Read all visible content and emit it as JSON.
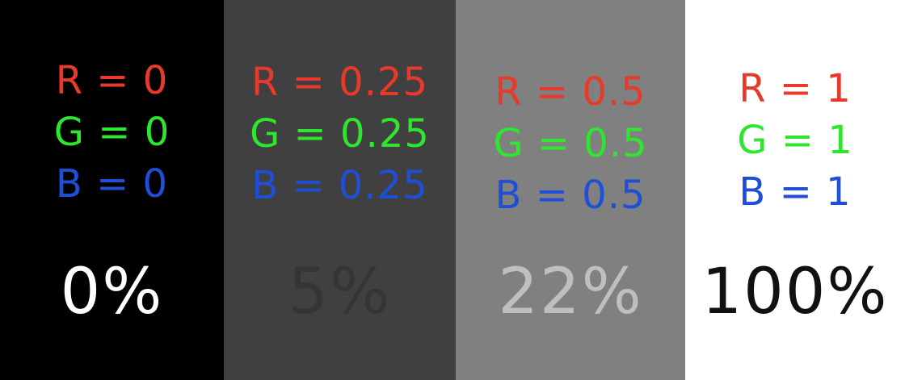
{
  "panels": [
    {
      "bg": "#000000",
      "percent_color": "#ffffff",
      "r": "R = 0",
      "g": "G = 0",
      "b": "B = 0",
      "percent": "0%"
    },
    {
      "bg": "#404040",
      "percent_color": "#353535",
      "r": "R = 0.25",
      "g": "G = 0.25",
      "b": "B = 0.25",
      "percent": "5%"
    },
    {
      "bg": "#808080",
      "percent_color": "#bfbfbf",
      "r": "R = 0.5",
      "g": "G = 0.5",
      "b": "B = 0.5",
      "percent": "22%"
    },
    {
      "bg": "#ffffff",
      "percent_color": "#111111",
      "r": "R = 1",
      "g": "G = 1",
      "b": "B = 1",
      "percent": "100%"
    }
  ],
  "colors": {
    "red": "#e8392b",
    "green": "#2ee62e",
    "blue": "#1f4fd6"
  }
}
